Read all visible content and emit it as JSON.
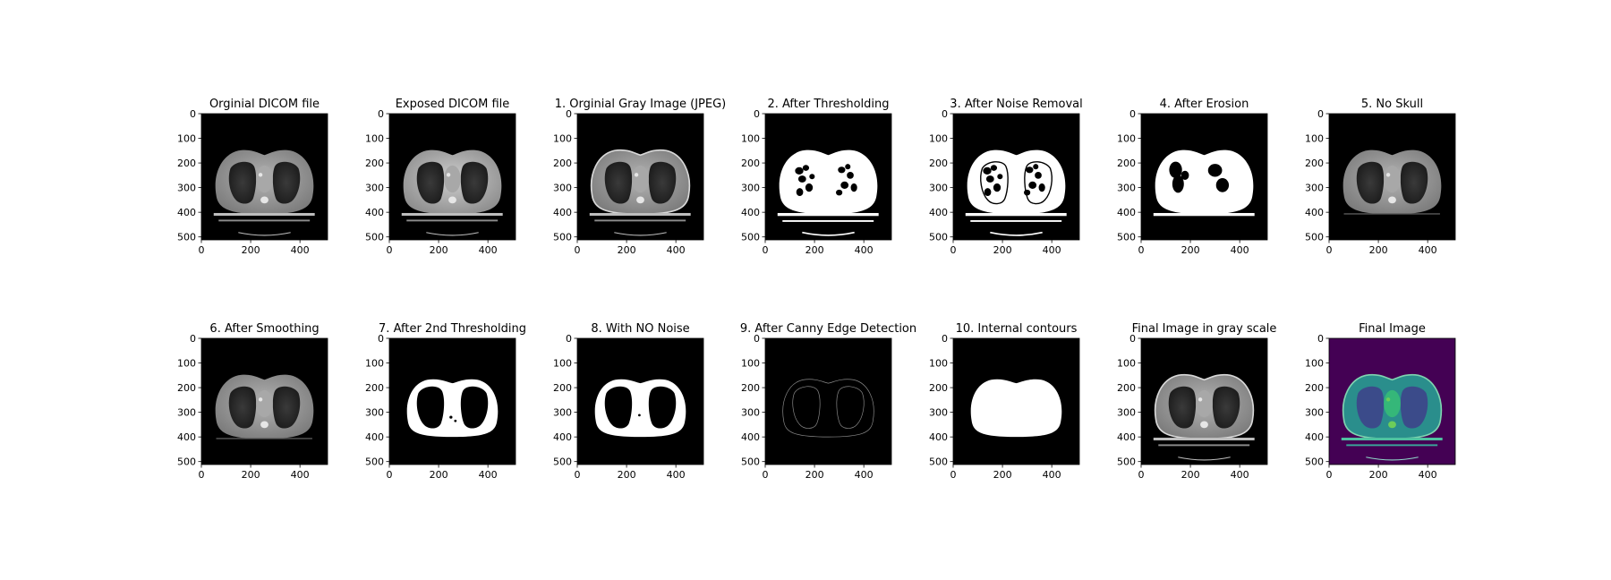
{
  "figure": {
    "background": "#ffffff"
  },
  "chart_data": [
    {
      "type": "heatmap",
      "title": "Orginial DICOM file",
      "image": "ct-gray",
      "xticks": [
        "0",
        "200",
        "400"
      ],
      "yticks": [
        "0",
        "100",
        "200",
        "300",
        "400",
        "500"
      ],
      "xlim": [
        0,
        512
      ],
      "ylim": [
        512,
        0
      ]
    },
    {
      "type": "heatmap",
      "title": "Exposed DICOM file",
      "image": "ct-gray-exposed",
      "xticks": [
        "0",
        "200",
        "400"
      ],
      "yticks": [
        "0",
        "100",
        "200",
        "300",
        "400",
        "500"
      ],
      "xlim": [
        0,
        512
      ],
      "ylim": [
        512,
        0
      ]
    },
    {
      "type": "heatmap",
      "title": "1. Orginial Gray Image (JPEG)",
      "image": "ct-gray-outlined",
      "xticks": [
        "0",
        "200",
        "400"
      ],
      "yticks": [
        "0",
        "100",
        "200",
        "300",
        "400",
        "500"
      ],
      "xlim": [
        0,
        512
      ],
      "ylim": [
        512,
        0
      ]
    },
    {
      "type": "heatmap",
      "title": "2. After Thresholding",
      "image": "binary-threshold",
      "xticks": [
        "0",
        "200",
        "400"
      ],
      "yticks": [
        "0",
        "100",
        "200",
        "300",
        "400",
        "500"
      ],
      "xlim": [
        0,
        512
      ],
      "ylim": [
        512,
        0
      ]
    },
    {
      "type": "heatmap",
      "title": "3. After Noise Removal",
      "image": "binary-noise-removed",
      "xticks": [
        "0",
        "200",
        "400"
      ],
      "yticks": [
        "0",
        "100",
        "200",
        "300",
        "400",
        "500"
      ],
      "xlim": [
        0,
        512
      ],
      "ylim": [
        512,
        0
      ]
    },
    {
      "type": "heatmap",
      "title": "4. After Erosion",
      "image": "binary-eroded",
      "xticks": [
        "0",
        "200",
        "400"
      ],
      "yticks": [
        "0",
        "100",
        "200",
        "300",
        "400",
        "500"
      ],
      "xlim": [
        0,
        512
      ],
      "ylim": [
        512,
        0
      ]
    },
    {
      "type": "heatmap",
      "title": "5. No Skull",
      "image": "ct-gray-no-skull",
      "xticks": [
        "0",
        "200",
        "400"
      ],
      "yticks": [
        "0",
        "100",
        "200",
        "300",
        "400",
        "500"
      ],
      "xlim": [
        0,
        512
      ],
      "ylim": [
        512,
        0
      ]
    },
    {
      "type": "heatmap",
      "title": "6. After Smoothing",
      "image": "ct-gray-smoothed",
      "xticks": [
        "0",
        "200",
        "400"
      ],
      "yticks": [
        "0",
        "100",
        "200",
        "300",
        "400",
        "500"
      ],
      "xlim": [
        0,
        512
      ],
      "ylim": [
        512,
        0
      ]
    },
    {
      "type": "heatmap",
      "title": "7. After 2nd Thresholding",
      "image": "binary-second-threshold",
      "xticks": [
        "0",
        "200",
        "400"
      ],
      "yticks": [
        "0",
        "100",
        "200",
        "300",
        "400",
        "500"
      ],
      "xlim": [
        0,
        512
      ],
      "ylim": [
        512,
        0
      ]
    },
    {
      "type": "heatmap",
      "title": "8. With NO Noise",
      "image": "binary-clean",
      "xticks": [
        "0",
        "200",
        "400"
      ],
      "yticks": [
        "0",
        "100",
        "200",
        "300",
        "400",
        "500"
      ],
      "xlim": [
        0,
        512
      ],
      "ylim": [
        512,
        0
      ]
    },
    {
      "type": "heatmap",
      "title": "9. After Canny Edge Detection",
      "image": "edges",
      "xticks": [
        "0",
        "200",
        "400"
      ],
      "yticks": [
        "0",
        "100",
        "200",
        "300",
        "400",
        "500"
      ],
      "xlim": [
        0,
        512
      ],
      "ylim": [
        512,
        0
      ]
    },
    {
      "type": "heatmap",
      "title": "10. Internal contours",
      "image": "filled-contour",
      "xticks": [
        "0",
        "200",
        "400"
      ],
      "yticks": [
        "0",
        "100",
        "200",
        "300",
        "400",
        "500"
      ],
      "xlim": [
        0,
        512
      ],
      "ylim": [
        512,
        0
      ]
    },
    {
      "type": "heatmap",
      "title": "Final Image in gray scale",
      "image": "ct-gray-final",
      "xticks": [
        "0",
        "200",
        "400"
      ],
      "yticks": [
        "0",
        "100",
        "200",
        "300",
        "400",
        "500"
      ],
      "xlim": [
        0,
        512
      ],
      "ylim": [
        512,
        0
      ]
    },
    {
      "type": "heatmap",
      "title": "Final Image",
      "image": "ct-viridis",
      "colormap": "viridis",
      "colors": {
        "background": "#440154",
        "body": "#2a8e8c",
        "lung": "#3b4b8a",
        "bright": "#6ccd5a"
      },
      "xticks": [
        "0",
        "200",
        "400"
      ],
      "yticks": [
        "0",
        "100",
        "200",
        "300",
        "400",
        "500"
      ],
      "xlim": [
        0,
        512
      ],
      "ylim": [
        512,
        0
      ]
    }
  ]
}
